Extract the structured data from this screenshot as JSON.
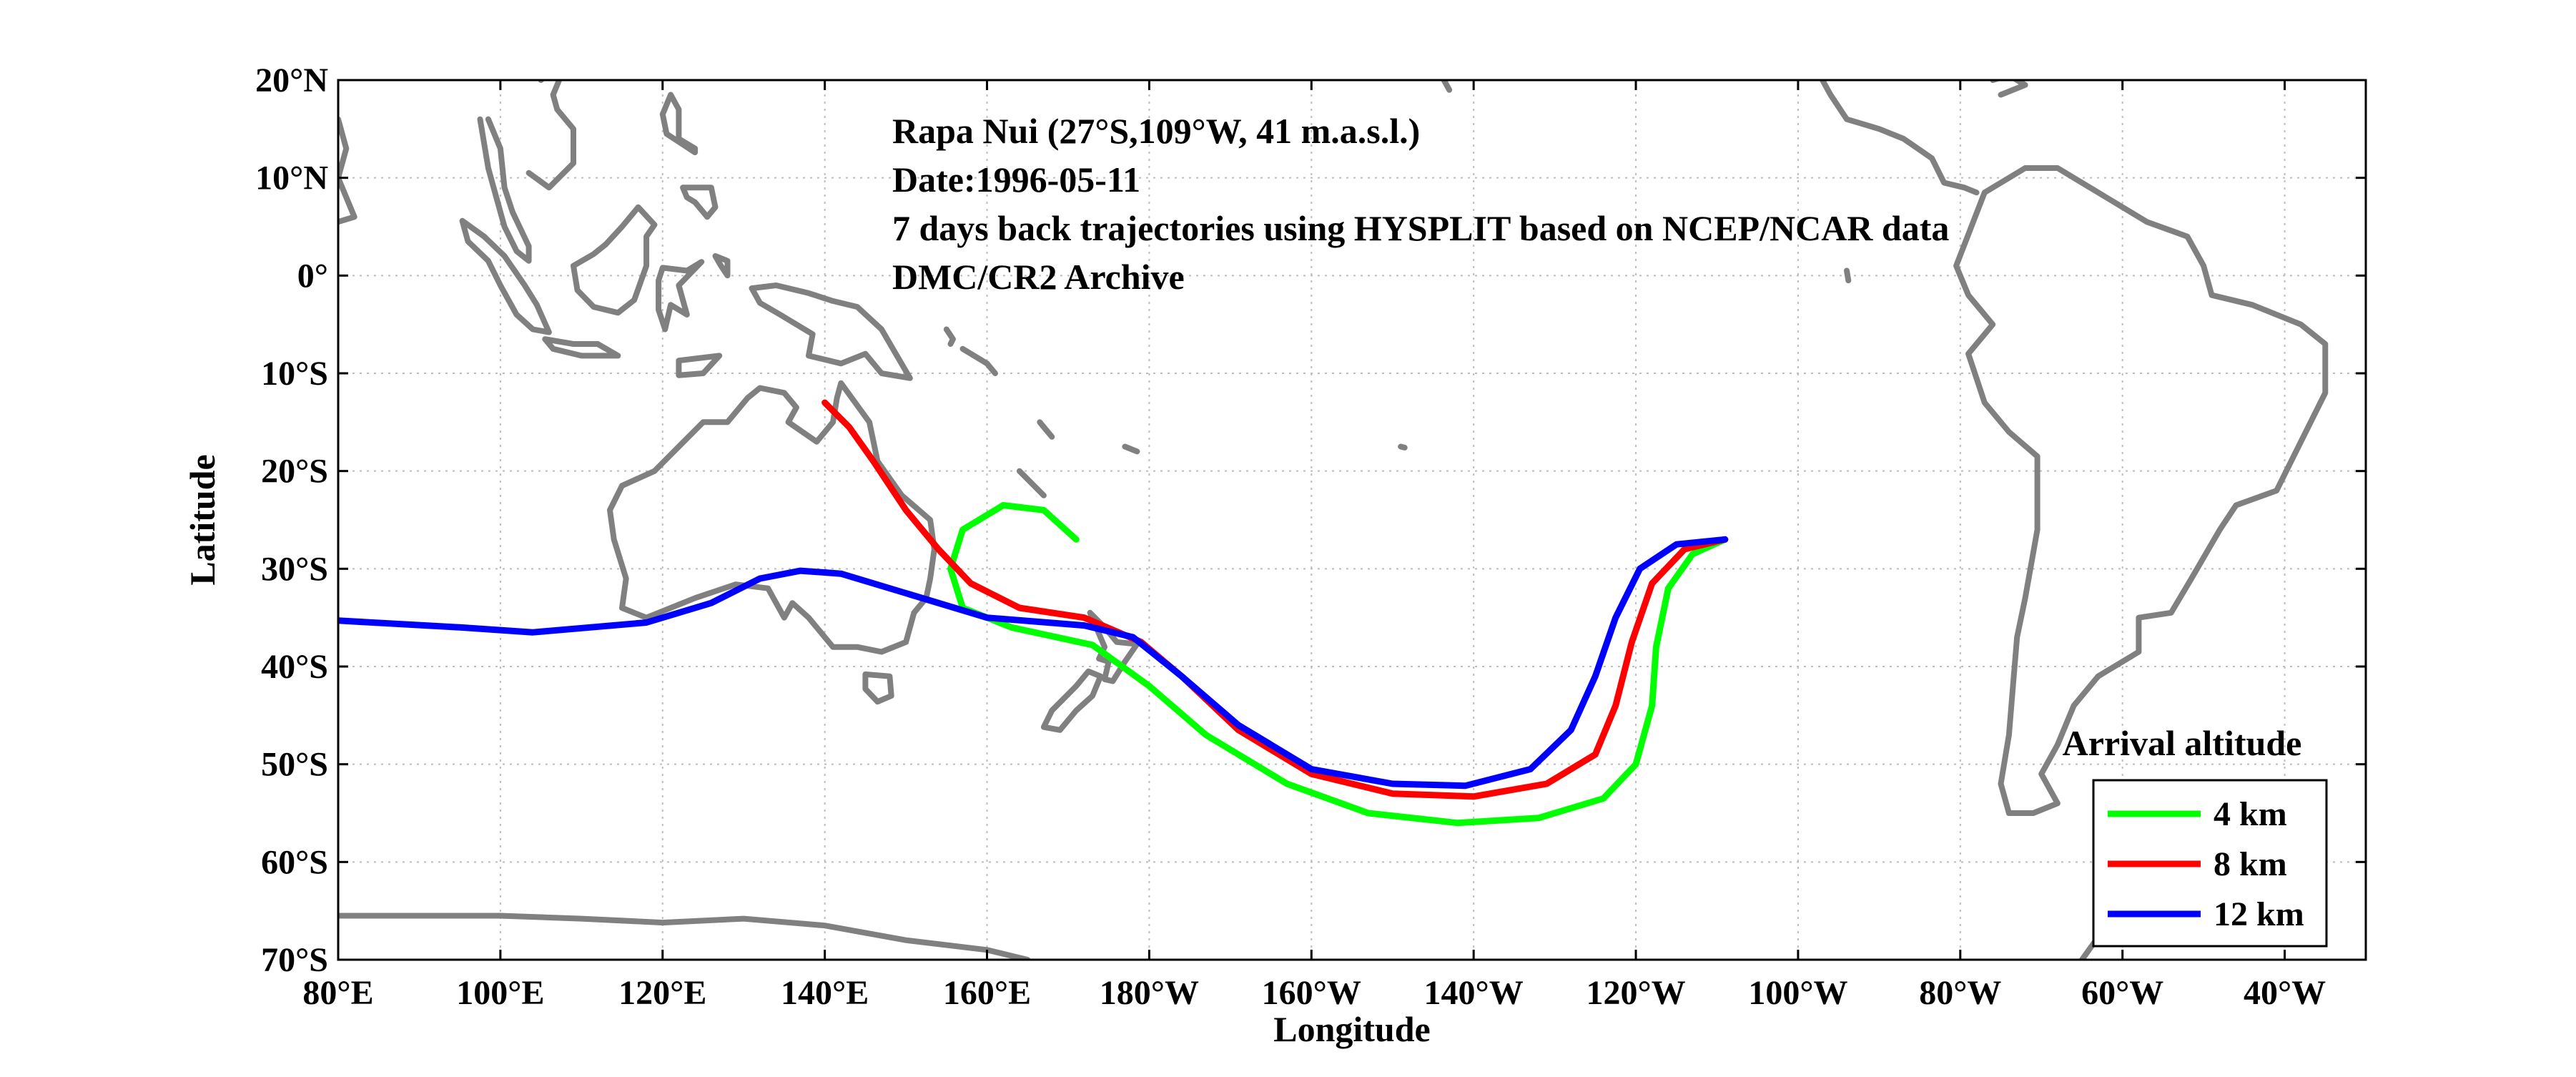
{
  "chart_data": {
    "type": "map",
    "xlabel": "Longitude",
    "ylabel": "Latitude",
    "xlim": [
      80,
      330
    ],
    "ylim": [
      -70,
      20
    ],
    "grid": true,
    "x_ticks": [
      {
        "value": 80,
        "label": "80°E"
      },
      {
        "value": 100,
        "label": "100°E"
      },
      {
        "value": 120,
        "label": "120°E"
      },
      {
        "value": 140,
        "label": "140°E"
      },
      {
        "value": 160,
        "label": "160°E"
      },
      {
        "value": 180,
        "label": "180°W"
      },
      {
        "value": 200,
        "label": "160°W"
      },
      {
        "value": 220,
        "label": "140°W"
      },
      {
        "value": 240,
        "label": "120°W"
      },
      {
        "value": 260,
        "label": "100°W"
      },
      {
        "value": 280,
        "label": "80°W"
      },
      {
        "value": 300,
        "label": "60°W"
      },
      {
        "value": 320,
        "label": "40°W"
      }
    ],
    "y_ticks": [
      {
        "value": 20,
        "label": "20°N"
      },
      {
        "value": 10,
        "label": "10°N"
      },
      {
        "value": 0,
        "label": "0°"
      },
      {
        "value": -10,
        "label": "10°S"
      },
      {
        "value": -20,
        "label": "20°S"
      },
      {
        "value": -30,
        "label": "30°S"
      },
      {
        "value": -40,
        "label": "40°S"
      },
      {
        "value": -50,
        "label": "50°S"
      },
      {
        "value": -60,
        "label": "60°S"
      },
      {
        "value": -70,
        "label": "70°S"
      }
    ],
    "annotations": [
      "Rapa Nui (27°S,109°W, 41 m.a.s.l.)",
      "Date:1996-05-11",
      "7 days back trajectories using HYSPLIT based on NCEP/NCAR data",
      "DMC/CR2 Archive"
    ],
    "legend": {
      "title": "Arrival altitude",
      "position": "bottom-right"
    },
    "series": [
      {
        "name": "4 km",
        "color": "#00ff00",
        "points": [
          [
            251,
            -27
          ],
          [
            247,
            -28.5
          ],
          [
            244,
            -32
          ],
          [
            242.5,
            -38
          ],
          [
            242,
            -44
          ],
          [
            240,
            -50
          ],
          [
            236,
            -53.5
          ],
          [
            228,
            -55.5
          ],
          [
            218,
            -56
          ],
          [
            207,
            -55
          ],
          [
            197,
            -52
          ],
          [
            187,
            -47
          ],
          [
            180,
            -42
          ],
          [
            173,
            -37.8
          ],
          [
            163,
            -36
          ],
          [
            157,
            -34
          ],
          [
            155.5,
            -30
          ],
          [
            157,
            -26
          ],
          [
            162,
            -23.5
          ],
          [
            167,
            -24
          ],
          [
            171,
            -27
          ]
        ]
      },
      {
        "name": "8 km",
        "color": "#ff0000",
        "points": [
          [
            251,
            -27
          ],
          [
            246,
            -28
          ],
          [
            242,
            -31.5
          ],
          [
            239.5,
            -37.5
          ],
          [
            237.5,
            -44
          ],
          [
            235,
            -49
          ],
          [
            229,
            -52
          ],
          [
            220,
            -53.3
          ],
          [
            210,
            -53
          ],
          [
            200,
            -51
          ],
          [
            191,
            -46.5
          ],
          [
            184,
            -41
          ],
          [
            179,
            -37.5
          ],
          [
            172,
            -35
          ],
          [
            164,
            -34
          ],
          [
            158,
            -31.5
          ],
          [
            154,
            -28
          ],
          [
            150,
            -24
          ],
          [
            146,
            -19
          ],
          [
            143,
            -15.5
          ],
          [
            140,
            -13
          ]
        ]
      },
      {
        "name": "12 km",
        "color": "#0000ff",
        "points": [
          [
            251,
            -27
          ],
          [
            245,
            -27.5
          ],
          [
            240.5,
            -30
          ],
          [
            237.5,
            -35
          ],
          [
            235,
            -41
          ],
          [
            232,
            -46.5
          ],
          [
            227,
            -50.5
          ],
          [
            219,
            -52.2
          ],
          [
            210,
            -52
          ],
          [
            200,
            -50.5
          ],
          [
            191,
            -46
          ],
          [
            184,
            -41
          ],
          [
            178,
            -37
          ],
          [
            172,
            -35.8
          ],
          [
            160,
            -35
          ],
          [
            150,
            -32.5
          ],
          [
            142,
            -30.5
          ],
          [
            137,
            -30.2
          ],
          [
            132,
            -31
          ],
          [
            126,
            -33.5
          ],
          [
            118,
            -35.5
          ],
          [
            104,
            -36.5
          ],
          [
            95,
            -36
          ],
          [
            80,
            -35.3
          ]
        ]
      }
    ],
    "coastlines": [
      [
        [
          284,
          -5
        ],
        [
          281,
          -2
        ],
        [
          279.5,
          1
        ],
        [
          283,
          8.5
        ],
        [
          288,
          11
        ],
        [
          292,
          11
        ],
        [
          298,
          8
        ],
        [
          303,
          5.5
        ],
        [
          308,
          4
        ],
        [
          310,
          1
        ],
        [
          311,
          -2
        ],
        [
          316,
          -3
        ],
        [
          322,
          -5
        ],
        [
          325,
          -7
        ],
        [
          325,
          -12
        ],
        [
          322,
          -17
        ],
        [
          319,
          -22
        ],
        [
          314,
          -23.5
        ],
        [
          312,
          -26
        ],
        [
          308.5,
          -31
        ],
        [
          306,
          -34.5
        ],
        [
          302,
          -35
        ],
        [
          302,
          -38.5
        ],
        [
          297,
          -41
        ],
        [
          294,
          -44
        ],
        [
          292,
          -48
        ],
        [
          290,
          -51
        ],
        [
          292,
          -54
        ],
        [
          289,
          -55
        ],
        [
          286,
          -55
        ],
        [
          285,
          -52
        ],
        [
          286,
          -47
        ],
        [
          286.5,
          -42
        ],
        [
          287,
          -37
        ],
        [
          288,
          -33
        ],
        [
          289.5,
          -26
        ],
        [
          289.5,
          -18.5
        ],
        [
          286,
          -16
        ],
        [
          283,
          -13
        ],
        [
          281,
          -8
        ],
        [
          284,
          -5
        ]
      ],
      [
        [
          142,
          -11
        ],
        [
          145.5,
          -15
        ],
        [
          146.5,
          -19
        ],
        [
          149.5,
          -22.5
        ],
        [
          153,
          -25
        ],
        [
          153.5,
          -28
        ],
        [
          153,
          -31
        ],
        [
          152.5,
          -33
        ],
        [
          151,
          -34.5
        ],
        [
          150,
          -37.5
        ],
        [
          147,
          -38.5
        ],
        [
          144,
          -38
        ],
        [
          141,
          -38
        ],
        [
          138,
          -35
        ],
        [
          136,
          -33.5
        ],
        [
          135,
          -35
        ],
        [
          133,
          -32
        ],
        [
          129,
          -31.6
        ],
        [
          124,
          -33
        ],
        [
          118,
          -35
        ],
        [
          115,
          -34
        ],
        [
          115.5,
          -31
        ],
        [
          114,
          -27
        ],
        [
          113.5,
          -24
        ],
        [
          115,
          -21.5
        ],
        [
          119,
          -20
        ],
        [
          122,
          -17.5
        ],
        [
          125,
          -15
        ],
        [
          128,
          -15
        ],
        [
          130.5,
          -12.5
        ],
        [
          132,
          -11.5
        ],
        [
          135,
          -12
        ],
        [
          136.5,
          -13.5
        ],
        [
          135.5,
          -15
        ],
        [
          139,
          -17
        ],
        [
          141,
          -15
        ],
        [
          141.5,
          -12.5
        ],
        [
          142,
          -11
        ]
      ],
      [
        [
          145,
          -40.8
        ],
        [
          148,
          -41
        ],
        [
          148.2,
          -43
        ],
        [
          146.5,
          -43.6
        ],
        [
          145,
          -42.3
        ],
        [
          145,
          -40.8
        ]
      ],
      [
        [
          172.7,
          -34.5
        ],
        [
          174.5,
          -36
        ],
        [
          176,
          -37.5
        ],
        [
          178.5,
          -37.7
        ],
        [
          177,
          -39.5
        ],
        [
          175.5,
          -41.5
        ],
        [
          174.5,
          -41.3
        ],
        [
          175,
          -39.5
        ],
        [
          173.8,
          -39.2
        ],
        [
          174.5,
          -38
        ],
        [
          172.7,
          -34.5
        ]
      ],
      [
        [
          172.5,
          -40.5
        ],
        [
          174,
          -41
        ],
        [
          173,
          -43
        ],
        [
          171,
          -44.5
        ],
        [
          169,
          -46.5
        ],
        [
          167,
          -46.2
        ],
        [
          168,
          -44.5
        ],
        [
          171,
          -42
        ],
        [
          172.5,
          -40.5
        ]
      ],
      [
        [
          131,
          -1.3
        ],
        [
          134,
          -1
        ],
        [
          138,
          -1.8
        ],
        [
          141,
          -2.6
        ],
        [
          144,
          -3.2
        ],
        [
          147,
          -5.5
        ],
        [
          150.5,
          -10.5
        ],
        [
          147,
          -10
        ],
        [
          145,
          -8
        ],
        [
          142,
          -9
        ],
        [
          138,
          -8.2
        ],
        [
          138.5,
          -6
        ],
        [
          134.5,
          -4
        ],
        [
          132,
          -2.8
        ],
        [
          131,
          -1.3
        ]
      ],
      [
        [
          109,
          1
        ],
        [
          109.5,
          -1.5
        ],
        [
          111.5,
          -3.2
        ],
        [
          114.5,
          -3.8
        ],
        [
          116.5,
          -2.5
        ],
        [
          118,
          1
        ],
        [
          118,
          4
        ],
        [
          119,
          5.2
        ],
        [
          117,
          7
        ],
        [
          115,
          5
        ],
        [
          113,
          3.2
        ],
        [
          111.5,
          2.2
        ],
        [
          109,
          1
        ]
      ],
      [
        [
          95.3,
          5.6
        ],
        [
          98,
          4
        ],
        [
          100.5,
          2
        ],
        [
          103,
          -1
        ],
        [
          104.5,
          -3
        ],
        [
          106,
          -5.8
        ],
        [
          104,
          -5.5
        ],
        [
          102,
          -4
        ],
        [
          100,
          -1
        ],
        [
          98.5,
          1.5
        ],
        [
          96,
          3.5
        ],
        [
          95.3,
          5.6
        ]
      ],
      [
        [
          105.5,
          -6.5
        ],
        [
          109,
          -7
        ],
        [
          112,
          -7
        ],
        [
          114.5,
          -8.2
        ],
        [
          110,
          -8.2
        ],
        [
          106.5,
          -7.5
        ],
        [
          105.5,
          -6.5
        ]
      ],
      [
        [
          120,
          0.8
        ],
        [
          123,
          0.5
        ],
        [
          124.8,
          1.4
        ],
        [
          122,
          -1
        ],
        [
          123,
          -4
        ],
        [
          121,
          -3
        ],
        [
          120.3,
          -5.5
        ],
        [
          119.5,
          -3.5
        ],
        [
          119.5,
          -0.5
        ],
        [
          120,
          0.8
        ]
      ],
      [
        [
          98.5,
          16
        ],
        [
          100,
          13
        ],
        [
          100.5,
          9
        ],
        [
          101.5,
          6.5
        ],
        [
          103.5,
          3
        ],
        [
          103.5,
          1.5
        ],
        [
          102,
          2.5
        ],
        [
          100.5,
          5
        ],
        [
          99.5,
          8
        ],
        [
          98.5,
          11
        ],
        [
          97.5,
          16
        ]
      ],
      [
        [
          80,
          16
        ],
        [
          81,
          13
        ],
        [
          80,
          10
        ],
        [
          82,
          6
        ],
        [
          80,
          5.5
        ]
      ],
      [
        [
          103.5,
          10.5
        ],
        [
          106,
          9
        ],
        [
          109,
          11.5
        ],
        [
          109,
          15
        ],
        [
          107,
          17
        ],
        [
          106.5,
          18.5
        ],
        [
          108,
          21.5
        ],
        [
          108,
          22
        ],
        [
          105,
          20
        ]
      ],
      [
        [
          121,
          18.5
        ],
        [
          122,
          17
        ],
        [
          122,
          14
        ],
        [
          124,
          13
        ],
        [
          124,
          12.6
        ],
        [
          120.5,
          14.5
        ],
        [
          120,
          16.5
        ],
        [
          121,
          18.5
        ]
      ],
      [
        [
          122.5,
          9
        ],
        [
          126,
          9
        ],
        [
          126.5,
          7
        ],
        [
          125.5,
          6
        ],
        [
          124,
          7.5
        ],
        [
          123,
          8
        ],
        [
          122.5,
          9
        ]
      ],
      [
        [
          126.5,
          2
        ],
        [
          128,
          1.5
        ],
        [
          128,
          0
        ],
        [
          127.2,
          1
        ],
        [
          126.5,
          2
        ]
      ],
      [
        [
          122,
          -8.7
        ],
        [
          127,
          -8.2
        ],
        [
          125,
          -10
        ],
        [
          122,
          -10.2
        ],
        [
          122,
          -8.7
        ]
      ],
      [
        [
          155,
          -5.5
        ],
        [
          155.8,
          -6.5
        ],
        [
          155.5,
          -7
        ]
      ],
      [
        [
          157,
          -7.5
        ],
        [
          160,
          -9
        ],
        [
          161,
          -10
        ]
      ],
      [
        [
          166.5,
          -15
        ],
        [
          167,
          -15.5
        ],
        [
          168,
          -16.5
        ]
      ],
      [
        [
          164,
          -20
        ],
        [
          167,
          -22.5
        ]
      ],
      [
        [
          177,
          -17.5
        ],
        [
          178.5,
          -18
        ]
      ],
      [
        [
          211,
          -17.5
        ],
        [
          211.5,
          -17.6
        ]
      ],
      [
        [
          266,
          0.5
        ],
        [
          266.2,
          -0.5
        ]
      ],
      [
        [
          217,
          19
        ],
        [
          216,
          20.5
        ]
      ],
      [
        [
          80,
          -65.5
        ],
        [
          90,
          -65.5
        ],
        [
          100,
          -65.5
        ],
        [
          110,
          -65.8
        ],
        [
          120,
          -66.2
        ],
        [
          130,
          -65.8
        ],
        [
          140,
          -66.5
        ],
        [
          150,
          -68
        ],
        [
          160,
          -69
        ],
        [
          165,
          -70
        ]
      ],
      [
        [
          295,
          -70
        ],
        [
          298,
          -66.5
        ],
        [
          300,
          -64.5
        ],
        [
          303,
          -63.5
        ]
      ],
      [
        [
          263,
          20
        ],
        [
          264,
          18.5
        ],
        [
          266,
          16
        ],
        [
          270,
          15
        ],
        [
          273,
          14
        ],
        [
          276.5,
          12
        ],
        [
          278,
          9.5
        ],
        [
          280.5,
          9
        ],
        [
          282,
          8.5
        ]
      ],
      [
        [
          284,
          20
        ],
        [
          286,
          20.5
        ],
        [
          288,
          19.5
        ],
        [
          285,
          18.5
        ]
      ]
    ]
  }
}
